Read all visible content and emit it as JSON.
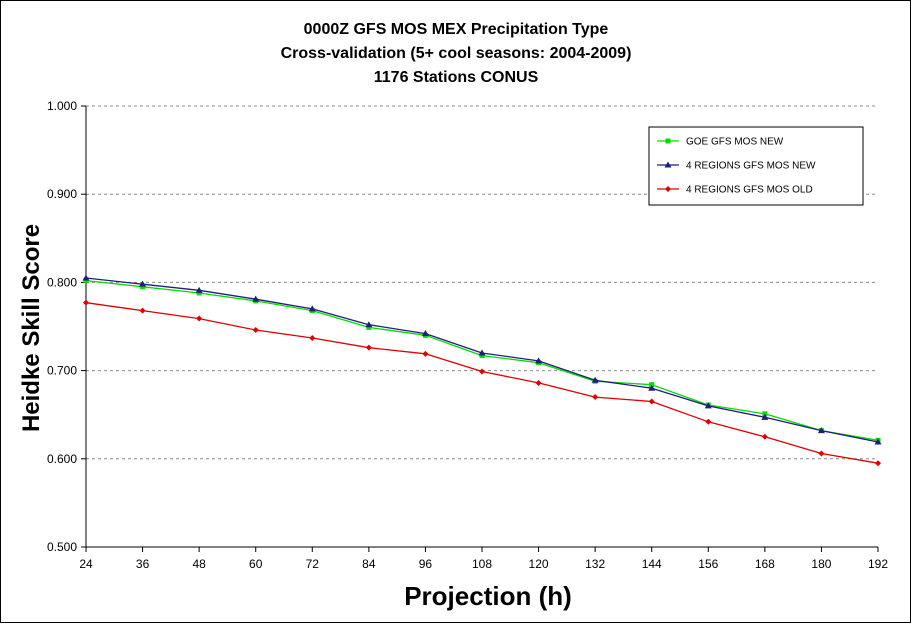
{
  "chart_data": {
    "type": "line",
    "title_lines": [
      "0000Z GFS MOS MEX Precipitation Type",
      "Cross-validation (5+ cool seasons: 2004-2009)",
      "1176 Stations CONUS"
    ],
    "xlabel": "Projection (h)",
    "ylabel": "Heidke Skill Score",
    "x": [
      24,
      36,
      48,
      60,
      72,
      84,
      96,
      108,
      120,
      132,
      144,
      156,
      168,
      180,
      192
    ],
    "x_tick_labels": [
      "24",
      "36",
      "48",
      "60",
      "72",
      "84",
      "96",
      "108",
      "120",
      "132",
      "144",
      "156",
      "168",
      "180",
      "192"
    ],
    "y_tick_values": [
      0.5,
      0.6,
      0.7,
      0.8,
      0.9,
      1.0
    ],
    "y_tick_labels": [
      "0.500",
      "0.600",
      "0.700",
      "0.800",
      "0.900",
      "1.000"
    ],
    "xlim": [
      24,
      192
    ],
    "ylim": [
      0.5,
      1.0
    ],
    "grid": "horizontal dashed",
    "legend_position": "top-right",
    "series": [
      {
        "name": "GOE GFS MOS NEW",
        "color": "#00dd00",
        "marker": "square",
        "values": [
          0.802,
          0.795,
          0.788,
          0.779,
          0.768,
          0.749,
          0.74,
          0.717,
          0.709,
          0.688,
          0.684,
          0.661,
          0.651,
          0.632,
          0.621
        ]
      },
      {
        "name": "4 REGIONS GFS MOS NEW",
        "color": "#1f1f7a",
        "marker": "triangle",
        "values": [
          0.805,
          0.798,
          0.791,
          0.781,
          0.77,
          0.752,
          0.742,
          0.72,
          0.711,
          0.689,
          0.68,
          0.66,
          0.647,
          0.632,
          0.619
        ]
      },
      {
        "name": "4 REGIONS GFS MOS OLD",
        "color": "#e00000",
        "marker": "diamond",
        "values": [
          0.777,
          0.768,
          0.759,
          0.746,
          0.737,
          0.726,
          0.719,
          0.699,
          0.686,
          0.67,
          0.665,
          0.642,
          0.625,
          0.606,
          0.595
        ]
      }
    ]
  }
}
